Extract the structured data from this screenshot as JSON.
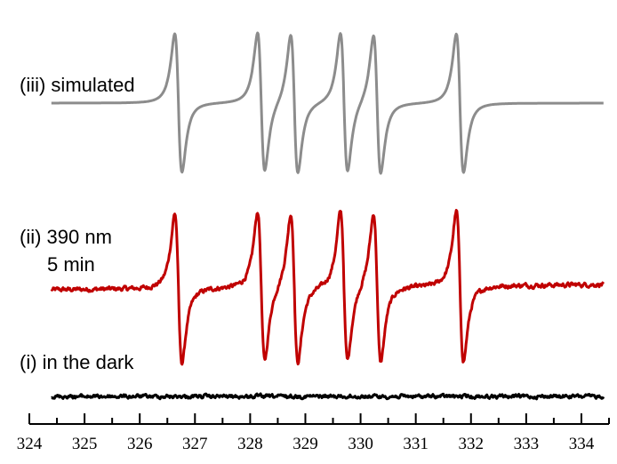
{
  "chart_data": {
    "type": "line",
    "title": "",
    "xlabel": "",
    "ylabel": "",
    "xlim": [
      324,
      334.5
    ],
    "grid": false,
    "x_ticks": [
      "324",
      "325",
      "326",
      "327",
      "328",
      "329",
      "330",
      "331",
      "332",
      "333",
      "334"
    ],
    "peaks_field": [
      326.7,
      328.2,
      328.8,
      329.7,
      330.3,
      331.8
    ],
    "series": [
      {
        "name": "(iii) simulated",
        "label_lines": [
          "(iii) simulated"
        ],
        "color": "#8c8c8c",
        "x_range": [
          324.4,
          334.4
        ],
        "baseline": 0,
        "amplitude": 100,
        "noise": 0,
        "drift": 0
      },
      {
        "name": "(ii) 390 nm 5 min",
        "label_lines": [
          "(ii) 390 nm",
          "5 min"
        ],
        "color": "#c00000",
        "x_range": [
          324.4,
          334.4
        ],
        "baseline": 0,
        "amplitude": 100,
        "noise": 2.5,
        "drift": 6
      },
      {
        "name": "(i) in the dark",
        "label_lines": [
          "(i) in the dark"
        ],
        "color": "#000000",
        "x_range": [
          324.4,
          334.4
        ],
        "baseline": 0,
        "amplitude": 0,
        "noise": 2,
        "drift": 0
      }
    ]
  }
}
